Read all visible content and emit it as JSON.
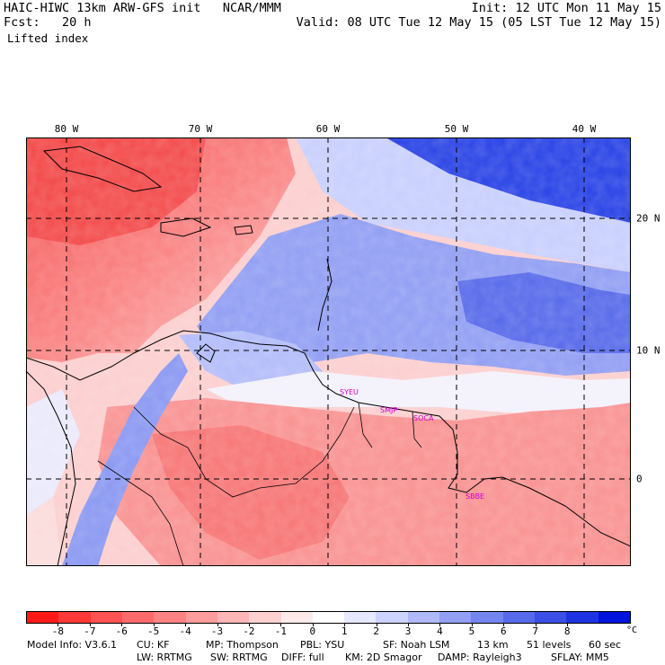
{
  "header": {
    "left_line1": "HAIC-HIWC 13km ARW-GFS init   NCAR/MMM",
    "left_line2": "Fcst:   20 h",
    "field": "Lifted index",
    "init": "Init: 12 UTC Mon 11 May 15",
    "valid": "Valid: 08 UTC Tue 12 May 15 (05 LST Tue 12 May 15)"
  },
  "axes": {
    "lon_labels": [
      "80 W",
      "70 W",
      "60 W",
      "50 W",
      "40 W"
    ],
    "lat_labels": [
      "20 N",
      "10 N",
      "0"
    ]
  },
  "stations": [
    "SYEU",
    "SMJP",
    "SOCA",
    "SBBE"
  ],
  "colorbar": {
    "labels": [
      "-8",
      "-7",
      "-6",
      "-5",
      "-4",
      "-3",
      "-2",
      "-1",
      "0",
      "1",
      "2",
      "3",
      "4",
      "5",
      "6",
      "7",
      "8"
    ],
    "unit": "°C",
    "colors": [
      "#ff1a1a",
      "#ff3838",
      "#ff5252",
      "#fb6a6a",
      "#fc8383",
      "#fd9c9c",
      "#feb6b6",
      "#ffd0d0",
      "#ffeaea",
      "#ffffff",
      "#e6e9ff",
      "#ccd3ff",
      "#b0b9f9",
      "#939ff3",
      "#7585ef",
      "#566aea",
      "#3b4fe6",
      "#1e34e2",
      "#0013dd"
    ]
  },
  "footer": {
    "line1": [
      "Model Info: V3.6.1",
      "CU: KF",
      "MP: Thompson",
      "PBL: YSU",
      "SF: Noah LSM",
      "13 km",
      "51 levels",
      "60 sec"
    ],
    "line2": [
      "LW: RRTMG",
      "SW: RRTMG",
      "DIFF: full",
      "KM: 2D Smagor",
      "DAMP: Rayleigh3",
      "SFLAY: MM5"
    ]
  }
}
